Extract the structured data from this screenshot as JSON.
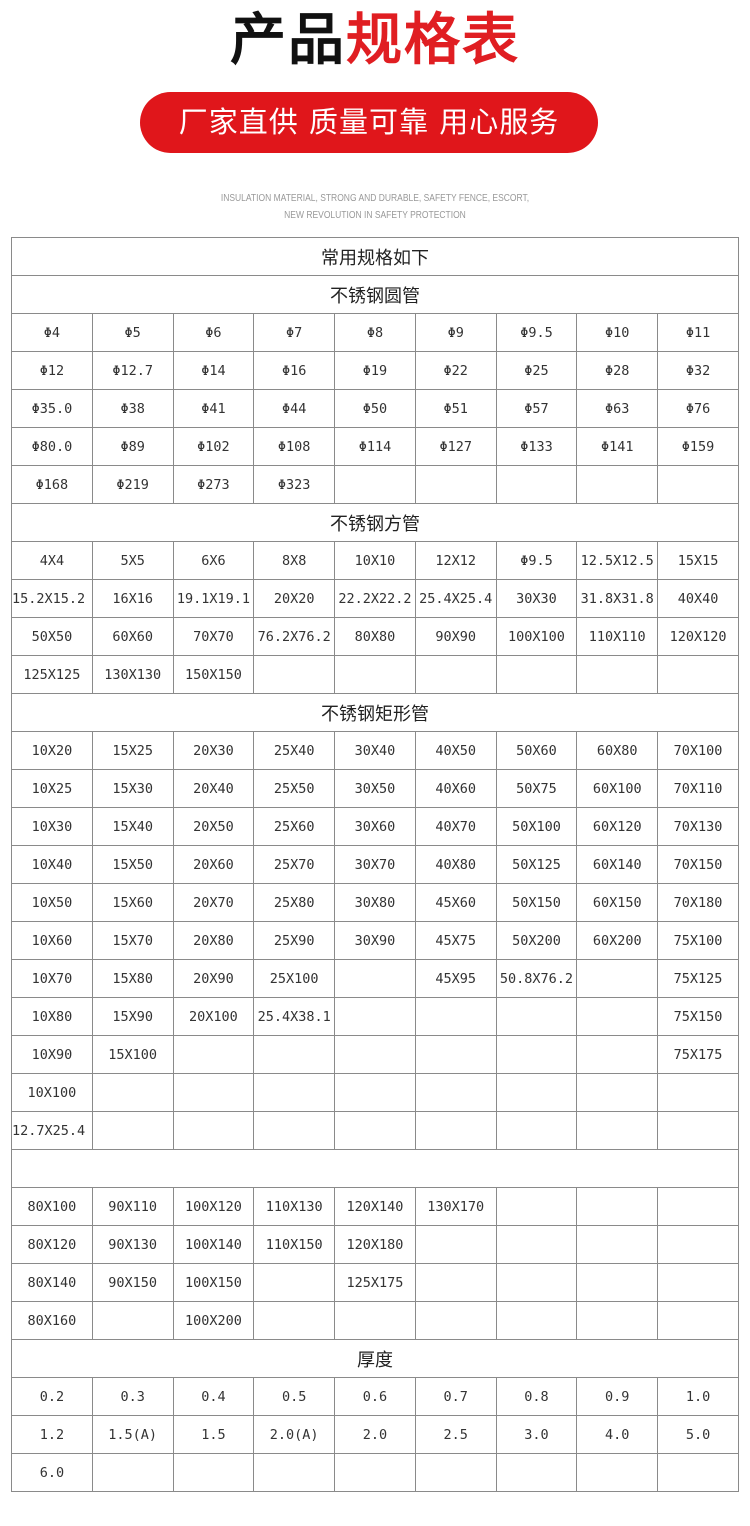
{
  "header": {
    "title_black": "产品",
    "title_red": "规格表",
    "slogan": "厂家直供  质量可靠  用心服务",
    "subtitle_line1": "INSULATION MATERIAL, STRONG AND DURABLE, SAFETY FENCE, ESCORT,",
    "subtitle_line2": "NEW REVOLUTION IN SAFETY PROTECTION",
    "accent_color": "#e0161b"
  },
  "table": {
    "sections": [
      {
        "heading": "常用规格如下",
        "rows": []
      },
      {
        "heading": "不锈钢圆管",
        "rows": [
          [
            "Φ4",
            "Φ5",
            "Φ6",
            "Φ7",
            "Φ8",
            "Φ9",
            "Φ9.5",
            "Φ10",
            "Φ11"
          ],
          [
            "Φ12",
            "Φ12.7",
            "Φ14",
            "Φ16",
            "Φ19",
            "Φ22",
            "Φ25",
            "Φ28",
            "Φ32"
          ],
          [
            "Φ35.0",
            "Φ38",
            "Φ41",
            "Φ44",
            "Φ50",
            "Φ51",
            "Φ57",
            "Φ63",
            "Φ76"
          ],
          [
            "Φ80.0",
            "Φ89",
            "Φ102",
            "Φ108",
            "Φ114",
            "Φ127",
            "Φ133",
            "Φ141",
            "Φ159"
          ],
          [
            "Φ168",
            "Φ219",
            "Φ273",
            "Φ323",
            "",
            "",
            "",
            "",
            ""
          ]
        ]
      },
      {
        "heading": "不锈钢方管",
        "rows": [
          [
            "4X4",
            "5X5",
            "6X6",
            "8X8",
            "10X10",
            "12X12",
            "Φ9.5",
            "12.5X12.5",
            "15X15"
          ],
          [
            "15.2X15.2",
            "16X16",
            "19.1X19.1",
            "20X20",
            "22.2X22.2",
            "25.4X25.4",
            "30X30",
            "31.8X31.8",
            "40X40"
          ],
          [
            "50X50",
            "60X60",
            "70X70",
            "76.2X76.2",
            "80X80",
            "90X90",
            "100X100",
            "110X110",
            "120X120"
          ],
          [
            "125X125",
            "130X130",
            "150X150",
            "",
            "",
            "",
            "",
            "",
            ""
          ]
        ]
      },
      {
        "heading": "不锈钢矩形管",
        "rows": [
          [
            "10X20",
            "15X25",
            "20X30",
            "25X40",
            "30X40",
            "40X50",
            "50X60",
            "60X80",
            "70X100"
          ],
          [
            "10X25",
            "15X30",
            "20X40",
            "25X50",
            "30X50",
            "40X60",
            "50X75",
            "60X100",
            "70X110"
          ],
          [
            "10X30",
            "15X40",
            "20X50",
            "25X60",
            "30X60",
            "40X70",
            "50X100",
            "60X120",
            "70X130"
          ],
          [
            "10X40",
            "15X50",
            "20X60",
            "25X70",
            "30X70",
            "40X80",
            "50X125",
            "60X140",
            "70X150"
          ],
          [
            "10X50",
            "15X60",
            "20X70",
            "25X80",
            "30X80",
            "45X60",
            "50X150",
            "60X150",
            "70X180"
          ],
          [
            "10X60",
            "15X70",
            "20X80",
            "25X90",
            "30X90",
            "45X75",
            "50X200",
            "60X200",
            "75X100"
          ],
          [
            "10X70",
            "15X80",
            "20X90",
            "25X100",
            "",
            "45X95",
            "50.8X76.2",
            "",
            "75X125"
          ],
          [
            "10X80",
            "15X90",
            "20X100",
            "25.4X38.1",
            "",
            "",
            "",
            "",
            "75X150"
          ],
          [
            "10X90",
            "15X100",
            "",
            "",
            "",
            "",
            "",
            "",
            "75X175"
          ],
          [
            "10X100",
            "",
            "",
            "",
            "",
            "",
            "",
            "",
            ""
          ],
          [
            "12.7X25.4",
            "",
            "",
            "",
            "",
            "",
            "",
            "",
            ""
          ]
        ]
      },
      {
        "heading": "",
        "rows": [
          [
            "80X100",
            "90X110",
            "100X120",
            "110X130",
            "120X140",
            "130X170",
            "",
            "",
            ""
          ],
          [
            "80X120",
            "90X130",
            "100X140",
            "110X150",
            "120X180",
            "",
            "",
            "",
            ""
          ],
          [
            "80X140",
            "90X150",
            "100X150",
            "",
            "125X175",
            "",
            "",
            "",
            ""
          ],
          [
            "80X160",
            "",
            "100X200",
            "",
            "",
            "",
            "",
            "",
            ""
          ]
        ]
      },
      {
        "heading": "厚度",
        "rows": [
          [
            "0.2",
            "0.3",
            "0.4",
            "0.5",
            "0.6",
            "0.7",
            "0.8",
            "0.9",
            "1.0"
          ],
          [
            "1.2",
            "1.5(A)",
            "1.5",
            "2.0(A)",
            "2.0",
            "2.5",
            "3.0",
            "4.0",
            "5.0"
          ],
          [
            "6.0",
            "",
            "",
            "",
            "",
            "",
            "",
            "",
            ""
          ]
        ]
      }
    ]
  }
}
